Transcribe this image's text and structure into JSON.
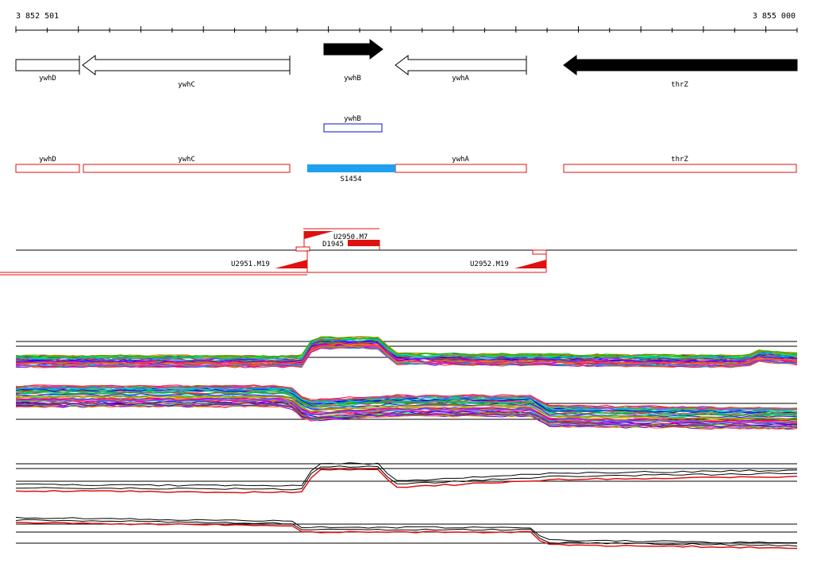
{
  "ruler": {
    "start_label": "3 852 501",
    "end_label": "3 855 000"
  },
  "genes": [
    {
      "name": "ywhD",
      "strand": "plus",
      "filled": false
    },
    {
      "name": "ywhC",
      "strand": "minus",
      "filled": false
    },
    {
      "name": "ywhB",
      "strand": "plus",
      "filled": true
    },
    {
      "name": "ywhA",
      "strand": "minus",
      "filled": false
    },
    {
      "name": "thrZ",
      "strand": "minus",
      "filled": true
    }
  ],
  "transcripts_blue": [
    {
      "name": "ywhB"
    }
  ],
  "transcripts_red": [
    {
      "name": "ywhD"
    },
    {
      "name": "ywhC"
    },
    {
      "name": "ywhA"
    },
    {
      "name": "thrZ"
    }
  ],
  "segment": {
    "name": "S1454",
    "color": "#1ea0ee"
  },
  "features": [
    {
      "name": "U2950.M7"
    },
    {
      "name": "D1945"
    },
    {
      "name": "U2951.M19"
    },
    {
      "name": "U2952.M19"
    }
  ],
  "colors": {
    "gene_outline": "#000000",
    "red_track": "#e01010",
    "blue_track": "#1010c0"
  }
}
